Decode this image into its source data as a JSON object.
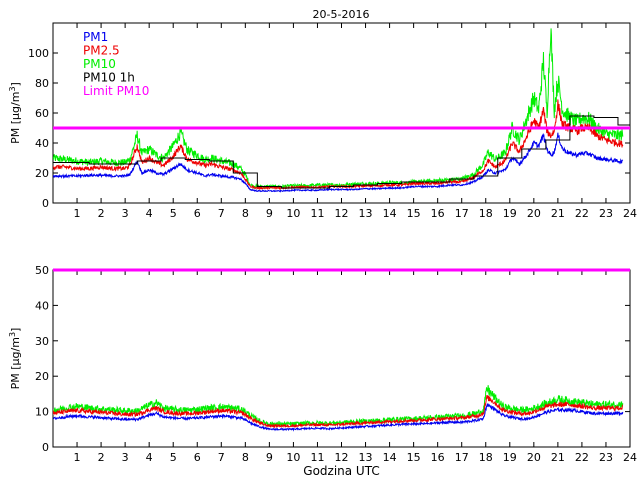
{
  "title": "20-5-2016",
  "colors": {
    "pm1": "#0000ee",
    "pm25": "#ee0000",
    "pm10": "#00ee00",
    "pm10_1h": "#000000",
    "limit": "#ff00ff"
  },
  "chart_data": [
    {
      "type": "line",
      "panel": "top",
      "ylabel_base": "PM [µg/m",
      "ylabel_sup": "3",
      "ylabel_end": "]",
      "xlim": [
        0,
        24
      ],
      "ylim": [
        0,
        120
      ],
      "xticks": [
        1,
        2,
        3,
        4,
        5,
        6,
        7,
        8,
        9,
        10,
        11,
        12,
        13,
        14,
        15,
        16,
        17,
        18,
        19,
        20,
        21,
        22,
        23,
        24
      ],
      "yticks": [
        0,
        20,
        40,
        60,
        80,
        100
      ],
      "legend": {
        "placement": "top-left",
        "entries": [
          "PM1",
          "PM2.5",
          "PM10",
          "PM10 1h",
          "Limit PM10"
        ]
      },
      "limit": 50,
      "x": [
        0,
        0.5,
        1,
        1.5,
        2,
        2.5,
        3,
        3.2,
        3.5,
        3.7,
        4,
        4.3,
        4.6,
        5,
        5.3,
        5.6,
        6,
        6.3,
        6.6,
        7,
        7.5,
        7.8,
        8,
        8.2,
        8.5,
        9,
        9.5,
        10,
        10.5,
        11,
        11.5,
        12,
        12.5,
        13,
        13.5,
        14,
        14.5,
        15,
        15.5,
        16,
        16.5,
        17,
        17.5,
        17.9,
        18.1,
        18.4,
        18.8,
        19.1,
        19.4,
        19.7,
        20,
        20.2,
        20.4,
        20.55,
        20.7,
        20.85,
        21,
        21.2,
        21.5,
        21.8,
        22,
        22.3,
        22.6,
        23,
        23.5,
        24
      ],
      "series": [
        {
          "name": "PM1",
          "values": [
            18,
            18,
            18,
            18.5,
            18.5,
            18,
            18,
            19,
            28,
            20,
            22,
            20,
            19,
            23,
            26,
            22,
            20,
            18,
            19,
            18,
            17,
            16,
            13,
            9,
            8,
            8,
            8,
            8.5,
            8.5,
            8.5,
            9,
            9,
            9,
            9.5,
            9.5,
            10,
            10,
            11,
            11,
            11,
            12,
            12,
            14,
            18,
            22,
            20,
            22,
            30,
            26,
            32,
            40,
            38,
            45,
            36,
            32,
            34,
            45,
            36,
            33,
            32,
            33,
            33,
            30,
            29,
            28,
            27
          ]
        },
        {
          "name": "PM2.5",
          "values": [
            24,
            24,
            23,
            23,
            24,
            23,
            23,
            25,
            38,
            27,
            30,
            27,
            25,
            31,
            38,
            29,
            27,
            25,
            26,
            24,
            22,
            20,
            16,
            11,
            10,
            10,
            10,
            10.5,
            10.5,
            10.5,
            11,
            11,
            11,
            11.5,
            11.5,
            12,
            12,
            13,
            13,
            13,
            14,
            14,
            17,
            22,
            28,
            24,
            28,
            40,
            34,
            44,
            55,
            50,
            62,
            48,
            45,
            48,
            66,
            52,
            50,
            48,
            50,
            50,
            45,
            42,
            40,
            38
          ]
        },
        {
          "name": "PM10",
          "values": [
            30,
            29,
            28,
            27,
            28,
            27,
            27,
            29,
            45,
            33,
            36,
            32,
            30,
            38,
            47,
            35,
            32,
            29,
            30,
            28,
            26,
            23,
            19,
            12,
            11,
            11,
            11,
            11.5,
            11.5,
            12,
            12,
            12,
            12.5,
            13,
            13,
            13.5,
            13.5,
            14,
            14.5,
            15,
            15.5,
            16,
            19,
            26,
            34,
            29,
            33,
            50,
            42,
            56,
            70,
            62,
            95,
            60,
            118,
            62,
            82,
            62,
            57,
            54,
            57,
            56,
            50,
            46,
            45,
            46
          ]
        }
      ],
      "pm10_1h": [
        27,
        27,
        26,
        26,
        28,
        30,
        29,
        28,
        20,
        11,
        10,
        10,
        11,
        12,
        13,
        14,
        14,
        16,
        18,
        30,
        36,
        42,
        58,
        57,
        52,
        50
      ]
    },
    {
      "type": "line",
      "panel": "bottom",
      "ylabel_base": "PM [µg/m",
      "ylabel_sup": "3",
      "ylabel_end": "]",
      "xlabel": "Godzina UTC",
      "xlim": [
        0,
        24
      ],
      "ylim": [
        0,
        50
      ],
      "xticks": [
        1,
        2,
        3,
        4,
        5,
        6,
        7,
        8,
        9,
        10,
        11,
        12,
        13,
        14,
        15,
        16,
        17,
        18,
        19,
        20,
        21,
        22,
        23,
        24
      ],
      "yticks": [
        0,
        10,
        20,
        30,
        40,
        50
      ],
      "limit": 50,
      "x": [
        0,
        0.5,
        1,
        1.5,
        2,
        2.5,
        3,
        3.5,
        4,
        4.3,
        4.6,
        5,
        5.5,
        6,
        6.5,
        7,
        7.5,
        7.9,
        8.3,
        8.7,
        9,
        9.5,
        10,
        10.5,
        11,
        11.5,
        12,
        12.5,
        13,
        13.5,
        14,
        14.5,
        15,
        15.5,
        16,
        16.5,
        17,
        17.6,
        17.9,
        18.05,
        18.3,
        18.7,
        19,
        19.4,
        19.8,
        20.2,
        20.6,
        21,
        21.5,
        22,
        22.5,
        23,
        23.5,
        24
      ],
      "series": [
        {
          "name": "PM1",
          "values": [
            8,
            8.5,
            8.8,
            8.5,
            8.3,
            8,
            7.8,
            7.8,
            9,
            9.5,
            8.5,
            8.2,
            8,
            8.2,
            8.5,
            8.8,
            8.5,
            8,
            6.5,
            5.5,
            5,
            5,
            5,
            5.2,
            5.3,
            5.2,
            5.4,
            5.6,
            5.8,
            6,
            6.2,
            6.4,
            6.5,
            6.6,
            6.8,
            7,
            7,
            7.5,
            8,
            12,
            11,
            9,
            8.5,
            8,
            8,
            9,
            10,
            10.5,
            10.5,
            10,
            9.5,
            9.5,
            9.5,
            10
          ]
        },
        {
          "name": "PM2.5",
          "values": [
            9.5,
            10,
            10.3,
            10,
            9.8,
            9.5,
            9.2,
            9.2,
            10.5,
            11,
            10,
            9.6,
            9.4,
            9.6,
            10,
            10.3,
            10,
            9.5,
            7.8,
            6.5,
            6,
            6,
            6,
            6.2,
            6.3,
            6.2,
            6.4,
            6.6,
            6.8,
            7,
            7.2,
            7.4,
            7.5,
            7.7,
            7.9,
            8.1,
            8.2,
            8.8,
            9.5,
            14,
            13,
            10.5,
            10,
            9.5,
            9.5,
            10.5,
            11.5,
            12,
            12,
            11.5,
            11,
            11,
            11,
            11.5
          ]
        },
        {
          "name": "PM10",
          "values": [
            10.5,
            11,
            11.5,
            11,
            10.8,
            10.5,
            10.2,
            10.2,
            11.8,
            12.5,
            11,
            10.6,
            10.4,
            10.6,
            11,
            11.3,
            11,
            10.5,
            8.5,
            7,
            6.6,
            6.5,
            6.5,
            6.7,
            6.8,
            6.7,
            6.9,
            7.1,
            7.3,
            7.5,
            7.7,
            7.9,
            8,
            8.2,
            8.4,
            8.6,
            8.8,
            9.5,
            10.3,
            16.5,
            14.5,
            11.5,
            11,
            10.5,
            10.5,
            11.5,
            12.5,
            13.5,
            13,
            12.5,
            12,
            12,
            12,
            12.5
          ]
        }
      ]
    }
  ]
}
